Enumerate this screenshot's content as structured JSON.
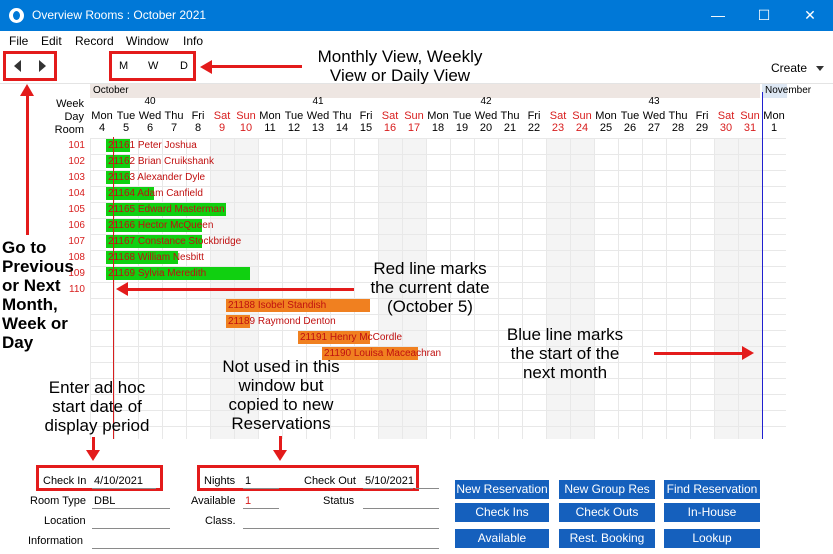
{
  "window": {
    "title": "Overview Rooms : October 2021",
    "minimize": "—",
    "maximize": "☐",
    "close": "✕"
  },
  "menu": [
    "File",
    "Edit",
    "Record",
    "Window",
    "Info"
  ],
  "toolbar": {
    "views": [
      "M",
      "W",
      "D"
    ],
    "create_label": "Create"
  },
  "calendar": {
    "months": [
      {
        "name": "October"
      },
      {
        "name": "November"
      }
    ],
    "weeks": [
      "40",
      "41",
      "42",
      "43"
    ],
    "row_headers": {
      "week": "Week",
      "day": "Day",
      "room": "Room"
    },
    "days": [
      {
        "n": "Mon",
        "d": "4"
      },
      {
        "n": "Tue",
        "d": "5"
      },
      {
        "n": "Wed",
        "d": "6"
      },
      {
        "n": "Thu",
        "d": "7"
      },
      {
        "n": "Fri",
        "d": "8"
      },
      {
        "n": "Sat",
        "d": "9"
      },
      {
        "n": "Sun",
        "d": "10"
      },
      {
        "n": "Mon",
        "d": "11"
      },
      {
        "n": "Tue",
        "d": "12"
      },
      {
        "n": "Wed",
        "d": "13"
      },
      {
        "n": "Thu",
        "d": "14"
      },
      {
        "n": "Fri",
        "d": "15"
      },
      {
        "n": "Sat",
        "d": "16"
      },
      {
        "n": "Sun",
        "d": "17"
      },
      {
        "n": "Mon",
        "d": "18"
      },
      {
        "n": "Tue",
        "d": "19"
      },
      {
        "n": "Wed",
        "d": "20"
      },
      {
        "n": "Thu",
        "d": "21"
      },
      {
        "n": "Fri",
        "d": "22"
      },
      {
        "n": "Sat",
        "d": "23"
      },
      {
        "n": "Sun",
        "d": "24"
      },
      {
        "n": "Mon",
        "d": "25"
      },
      {
        "n": "Tue",
        "d": "26"
      },
      {
        "n": "Wed",
        "d": "27"
      },
      {
        "n": "Thu",
        "d": "28"
      },
      {
        "n": "Fri",
        "d": "29"
      },
      {
        "n": "Sat",
        "d": "30"
      },
      {
        "n": "Sun",
        "d": "31"
      },
      {
        "n": "Mon",
        "d": "1"
      }
    ],
    "rooms": [
      "101",
      "102",
      "103",
      "104",
      "105",
      "106",
      "107",
      "108",
      "109",
      "110"
    ],
    "reservations": [
      {
        "label": "21161 Peter Joshua",
        "row": 0,
        "start_day": 4,
        "nights": 1,
        "color": "green"
      },
      {
        "label": "21162 Brian Cruikshank",
        "row": 1,
        "start_day": 4,
        "nights": 1,
        "color": "green"
      },
      {
        "label": "21163 Alexander Dyle",
        "row": 2,
        "start_day": 4,
        "nights": 1,
        "color": "green"
      },
      {
        "label": "21164 Adam Canfield",
        "row": 3,
        "start_day": 4,
        "nights": 2,
        "color": "green"
      },
      {
        "label": "21165 Edward Masterman",
        "row": 4,
        "start_day": 4,
        "nights": 5,
        "color": "green"
      },
      {
        "label": "21166 Hector McQueen",
        "row": 5,
        "start_day": 4,
        "nights": 4,
        "color": "green"
      },
      {
        "label": "21167 Constance Stockbridge",
        "row": 6,
        "start_day": 4,
        "nights": 4,
        "color": "green"
      },
      {
        "label": "21168 William Nesbitt",
        "row": 7,
        "start_day": 4,
        "nights": 3,
        "color": "green"
      },
      {
        "label": "21169 Sylvia Meredith",
        "row": 8,
        "start_day": 4,
        "nights": 6,
        "color": "green"
      },
      {
        "label": "21188 Isobel Standish",
        "row": 10,
        "start_day": 9,
        "nights": 6,
        "color": "orange"
      },
      {
        "label": "21189 Raymond Denton",
        "row": 11,
        "start_day": 9,
        "nights": 1,
        "color": "orange"
      },
      {
        "label": "21191 Henry McCordle",
        "row": 12,
        "start_day": 12,
        "nights": 3,
        "color": "orange"
      },
      {
        "label": "21190 Louisa Maceachran",
        "row": 13,
        "start_day": 13,
        "nights": 4,
        "color": "orange"
      }
    ]
  },
  "annotations": {
    "views": "Monthly View, Weekly\nView or Daily View",
    "nav": "Go to\nPrevious\nor Next\nMonth,\nWeek or\nDay",
    "red_line": "Red line marks\nthe current date\n(October 5)",
    "blue_line": "Blue line marks\nthe start of the\nnext month",
    "checkin": "Enter ad hoc\nstart date of\ndisplay period",
    "nights": "Not used in this\nwindow but\ncopied to new\nReservations"
  },
  "form": {
    "check_in_label": "Check In",
    "check_in_value": "4/10/2021",
    "nights_label": "Nights",
    "nights_value": "1",
    "check_out_label": "Check Out",
    "check_out_value": "5/10/2021",
    "room_type_label": "Room Type",
    "room_type_value": "DBL",
    "available_label": "Available",
    "available_value": "1",
    "status_label": "Status",
    "location_label": "Location",
    "class_label": "Class.",
    "information_label": "Information"
  },
  "buttons": {
    "new_reservation": "New Reservation",
    "new_group_res": "New Group Res",
    "find_reservation": "Find Reservation",
    "check_ins": "Check Ins",
    "check_outs": "Check Outs",
    "in_house": "In-House",
    "available": "Available",
    "rest_booking": "Rest. Booking",
    "lookup": "Lookup"
  },
  "colors": {
    "titlebar": "#0078d7",
    "annotation_red": "#e31b1b",
    "button_blue": "#1560bd",
    "green_bar": "#10d010",
    "orange_bar": "#f08020"
  }
}
